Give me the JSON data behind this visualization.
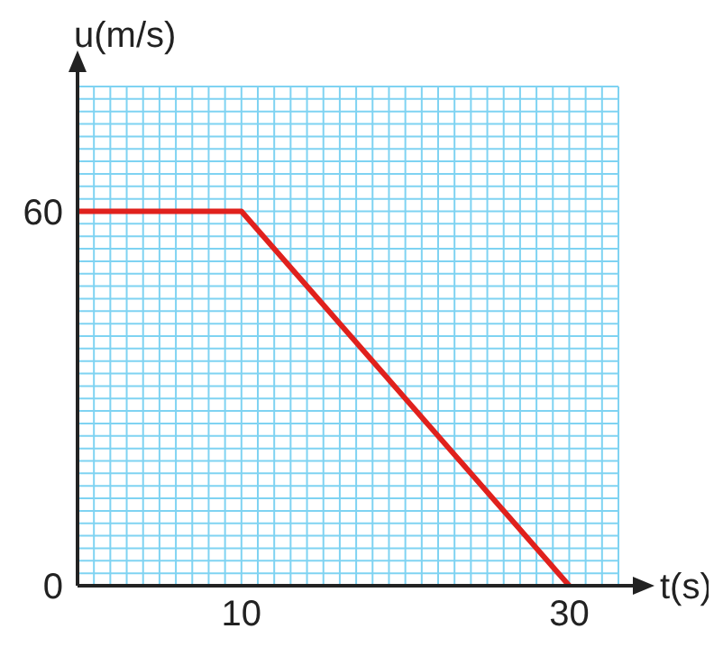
{
  "chart_data": {
    "type": "line",
    "xlabel": "t(s)",
    "ylabel": "u(m/s)",
    "series": [
      {
        "color": "#e0211d",
        "x": [
          0,
          10,
          30
        ],
        "values": [
          60,
          60,
          0
        ]
      }
    ],
    "xlim": [
      0,
      33
    ],
    "ylim": [
      0,
      80
    ],
    "xticks": [
      {
        "value": 0,
        "label": null
      },
      {
        "value": 1,
        "label": null
      },
      {
        "value": 2,
        "label": null
      },
      {
        "value": 3,
        "label": null
      },
      {
        "value": 4,
        "label": null
      },
      {
        "value": 5,
        "label": null
      },
      {
        "value": 6,
        "label": null
      },
      {
        "value": 7,
        "label": null
      },
      {
        "value": 8,
        "label": null
      },
      {
        "value": 9,
        "label": null
      },
      10,
      {
        "value": 11,
        "label": null
      },
      {
        "value": 12,
        "label": null
      },
      {
        "value": 13,
        "label": null
      },
      {
        "value": 14,
        "label": null
      },
      {
        "value": 15,
        "label": null
      },
      {
        "value": 16,
        "label": null
      },
      {
        "value": 17,
        "label": null
      },
      {
        "value": 18,
        "label": null
      },
      {
        "value": 19,
        "label": null
      },
      {
        "value": 20,
        "label": null
      },
      {
        "value": 21,
        "label": null
      },
      {
        "value": 22,
        "label": null
      },
      {
        "value": 23,
        "label": null
      },
      {
        "value": 24,
        "label": null
      },
      {
        "value": 25,
        "label": null
      },
      {
        "value": 26,
        "label": null
      },
      {
        "value": 27,
        "label": null
      },
      {
        "value": 28,
        "label": null
      },
      {
        "value": 29,
        "label": null
      },
      30,
      {
        "value": 31,
        "label": null
      },
      {
        "value": 32,
        "label": null
      },
      {
        "value": 33,
        "label": null
      }
    ],
    "yticks": [
      0,
      {
        "value": 2,
        "label": null
      },
      {
        "value": 4,
        "label": null
      },
      {
        "value": 6,
        "label": null
      },
      {
        "value": 8,
        "label": null
      },
      {
        "value": 10,
        "label": null
      },
      {
        "value": 12,
        "label": null
      },
      {
        "value": 14,
        "label": null
      },
      {
        "value": 16,
        "label": null
      },
      {
        "value": 18,
        "label": null
      },
      {
        "value": 20,
        "label": null
      },
      {
        "value": 22,
        "label": null
      },
      {
        "value": 24,
        "label": null
      },
      {
        "value": 26,
        "label": null
      },
      {
        "value": 28,
        "label": null
      },
      {
        "value": 30,
        "label": null
      },
      {
        "value": 32,
        "label": null
      },
      {
        "value": 34,
        "label": null
      },
      {
        "value": 36,
        "label": null
      },
      {
        "value": 38,
        "label": null
      },
      {
        "value": 40,
        "label": null
      },
      {
        "value": 42,
        "label": null
      },
      {
        "value": 44,
        "label": null
      },
      {
        "value": 46,
        "label": null
      },
      {
        "value": 48,
        "label": null
      },
      {
        "value": 50,
        "label": null
      },
      {
        "value": 52,
        "label": null
      },
      {
        "value": 54,
        "label": null
      },
      {
        "value": 56,
        "label": null
      },
      {
        "value": 58,
        "label": null
      },
      60,
      {
        "value": 62,
        "label": null
      },
      {
        "value": 64,
        "label": null
      },
      {
        "value": 66,
        "label": null
      },
      {
        "value": 68,
        "label": null
      },
      {
        "value": 70,
        "label": null
      },
      {
        "value": 72,
        "label": null
      },
      {
        "value": 74,
        "label": null
      },
      {
        "value": 76,
        "label": null
      },
      {
        "value": 78,
        "label": null
      },
      {
        "value": 80,
        "label": null
      }
    ],
    "grid": true,
    "marker": "none"
  }
}
